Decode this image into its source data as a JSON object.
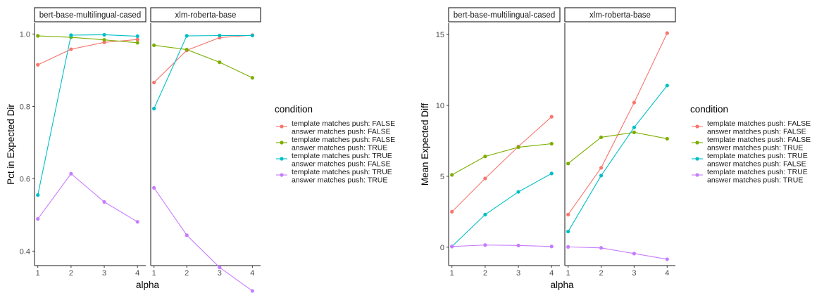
{
  "chart_data": [
    {
      "type": "line",
      "ylabel": "Pct in Expected Dir",
      "xlabel": "alpha",
      "x": [
        1,
        2,
        3,
        4
      ],
      "xlim": [
        0.9,
        4.25
      ],
      "ylim": [
        0.36,
        1.03
      ],
      "yticks": [
        0.4,
        0.6,
        0.8,
        1.0
      ],
      "ytick_labels": [
        "0.4",
        "0.6",
        "0.8",
        "1.0"
      ],
      "facets": [
        {
          "label": "bert-base-multilingual-cased",
          "series": [
            {
              "condition": 0,
              "values": [
                0.915,
                0.958,
                0.977,
                0.985
              ]
            },
            {
              "condition": 1,
              "values": [
                0.995,
                0.991,
                0.984,
                0.976
              ]
            },
            {
              "condition": 2,
              "values": [
                0.555,
                0.997,
                0.998,
                0.994
              ]
            },
            {
              "condition": 3,
              "values": [
                0.489,
                0.614,
                0.536,
                0.481
              ]
            }
          ]
        },
        {
          "label": "xlm-roberta-base",
          "series": [
            {
              "condition": 0,
              "values": [
                0.866,
                0.955,
                0.99,
                0.997
              ]
            },
            {
              "condition": 1,
              "values": [
                0.969,
                0.957,
                0.922,
                0.879
              ]
            },
            {
              "condition": 2,
              "values": [
                0.794,
                0.995,
                0.996,
                0.996
              ]
            },
            {
              "condition": 3,
              "values": [
                0.575,
                0.444,
                0.355,
                0.29
              ]
            }
          ]
        }
      ]
    },
    {
      "type": "line",
      "ylabel": "Mean Expected Diff",
      "xlabel": "alpha",
      "x": [
        1,
        2,
        3,
        4
      ],
      "xlim": [
        0.9,
        4.25
      ],
      "ylim": [
        -1.3,
        15.8
      ],
      "yticks": [
        0,
        5,
        10,
        15
      ],
      "ytick_labels": [
        "0",
        "5",
        "10",
        "15"
      ],
      "facets": [
        {
          "label": "bert-base-multilingual-cased",
          "series": [
            {
              "condition": 0,
              "values": [
                2.5,
                4.85,
                7.1,
                9.2
              ]
            },
            {
              "condition": 1,
              "values": [
                5.1,
                6.4,
                7.05,
                7.3
              ]
            },
            {
              "condition": 2,
              "values": [
                0.05,
                2.3,
                3.9,
                5.2
              ]
            },
            {
              "condition": 3,
              "values": [
                0.05,
                0.15,
                0.12,
                0.05
              ]
            }
          ]
        },
        {
          "label": "xlm-roberta-base",
          "series": [
            {
              "condition": 0,
              "values": [
                2.3,
                5.6,
                10.2,
                15.1
              ]
            },
            {
              "condition": 1,
              "values": [
                5.9,
                7.75,
                8.1,
                7.65
              ]
            },
            {
              "condition": 2,
              "values": [
                1.1,
                5.05,
                8.45,
                11.4
              ]
            },
            {
              "condition": 3,
              "values": [
                0.02,
                -0.05,
                -0.45,
                -0.85
              ]
            }
          ]
        }
      ]
    }
  ],
  "legend": {
    "title": "condition",
    "entries": [
      {
        "line1": "template matches push: FALSE",
        "line2": "answer matches push: FALSE",
        "color": "#F8766D"
      },
      {
        "line1": "template matches push: FALSE",
        "line2": "answer matches push: TRUE",
        "color": "#7CAE00"
      },
      {
        "line1": "template matches push: TRUE",
        "line2": "answer matches push: FALSE",
        "color": "#00BFC4"
      },
      {
        "line1": "template matches push: TRUE",
        "line2": "answer matches push: TRUE",
        "color": "#C77CFF"
      }
    ]
  }
}
